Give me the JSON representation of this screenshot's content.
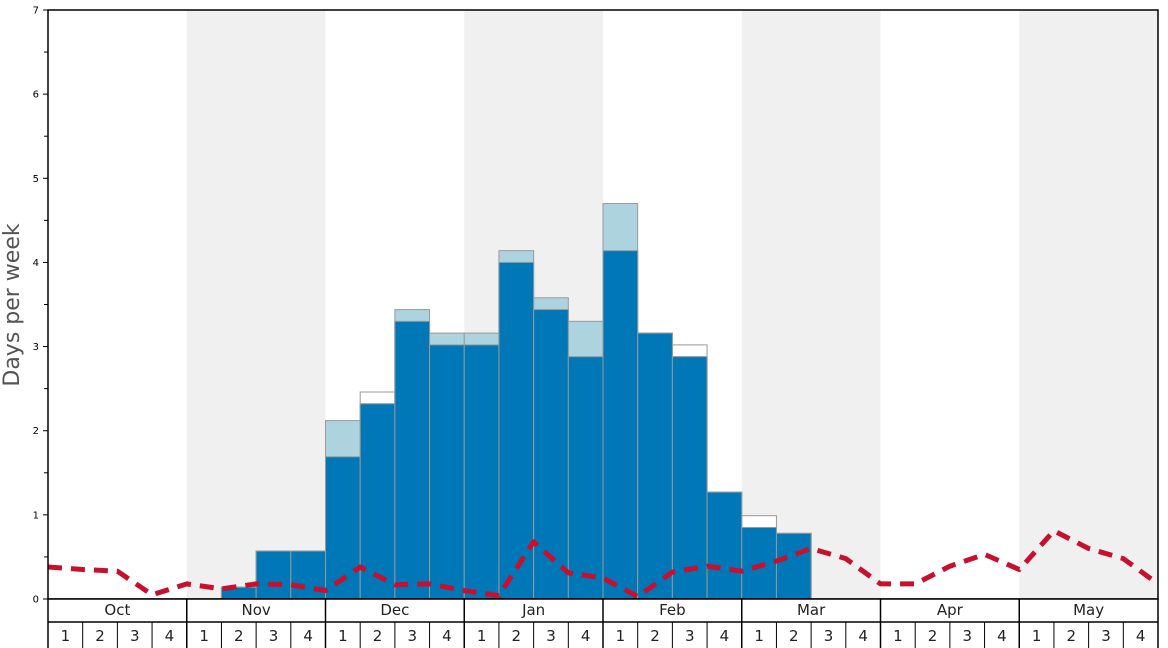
{
  "chart_data": {
    "type": "bar",
    "ylabel": "Days per week",
    "ylim": [
      0,
      7
    ],
    "yticks": [
      "0",
      "1",
      "2",
      "3",
      "4",
      "5",
      "6",
      "7"
    ],
    "months": [
      "Oct",
      "Nov",
      "Dec",
      "Jan",
      "Feb",
      "Mar",
      "Apr",
      "May"
    ],
    "week_labels": [
      "1",
      "2",
      "3",
      "4"
    ],
    "shaded_months": [
      "Nov",
      "Jan",
      "Mar",
      "May"
    ],
    "colors": {
      "primary": "#0077b6",
      "secondary": "#add3df",
      "outline": "#ffffff",
      "line": "#c8102e",
      "shade": "#f0f0f0"
    },
    "series": [
      {
        "kind": "bar-primary",
        "values": [
          0,
          0,
          0,
          0,
          0,
          0.14,
          0.57,
          0.57,
          1.69,
          2.32,
          3.3,
          3.02,
          3.02,
          4.0,
          3.44,
          2.88,
          4.14,
          3.16,
          2.88,
          1.27,
          0.85,
          0.78,
          0,
          0,
          0,
          0,
          0,
          0,
          0,
          0,
          0,
          0
        ]
      },
      {
        "kind": "bar-secondary",
        "values": [
          0,
          0,
          0,
          0,
          0,
          0.14,
          0.57,
          0.57,
          2.12,
          2.32,
          3.44,
          3.16,
          3.16,
          4.14,
          3.58,
          3.3,
          4.7,
          3.16,
          2.88,
          1.27,
          0.85,
          0.78,
          0,
          0,
          0,
          0,
          0,
          0,
          0,
          0,
          0,
          0
        ]
      },
      {
        "kind": "bar-outline",
        "values": [
          0,
          0,
          0,
          0,
          0,
          0.14,
          0.57,
          0.57,
          1.83,
          2.46,
          3.3,
          3.02,
          3.02,
          4.0,
          3.44,
          3.02,
          4.14,
          3.16,
          3.02,
          1.27,
          0.99,
          0.78,
          0,
          0,
          0,
          0,
          0,
          0,
          0,
          0,
          0,
          0
        ]
      },
      {
        "kind": "line",
        "values": [
          0.38,
          0.35,
          0.33,
          0.05,
          0.18,
          0.12,
          0.18,
          0.17,
          0.1,
          0.38,
          0.17,
          0.18,
          0.1,
          0.04,
          0.68,
          0.31,
          0.25,
          0.03,
          0.32,
          0.39,
          0.33,
          0.45,
          0.6,
          0.48,
          0.18,
          0.18,
          0.39,
          0.53,
          0.35,
          0.81,
          0.6,
          0.48,
          0.18
        ]
      }
    ]
  }
}
